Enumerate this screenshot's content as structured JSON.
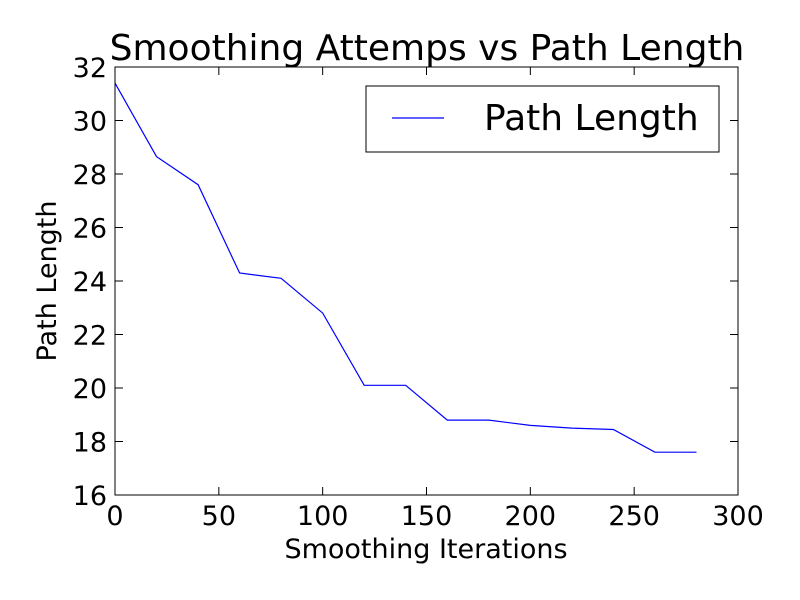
{
  "chart_data": {
    "type": "line",
    "title": "Smoothing Attemps vs Path Length",
    "xlabel": "Smoothing Iterations",
    "ylabel": "Path Length",
    "xlim": [
      0,
      300
    ],
    "ylim": [
      16,
      32
    ],
    "xticks": [
      0,
      50,
      100,
      150,
      200,
      250,
      300
    ],
    "yticks": [
      16,
      18,
      20,
      22,
      24,
      26,
      28,
      30,
      32
    ],
    "grid": false,
    "legend_position": "top-right",
    "series": [
      {
        "name": "Path Length",
        "color": "#0000ff",
        "x": [
          0,
          20,
          40,
          60,
          80,
          100,
          120,
          140,
          160,
          180,
          200,
          220,
          240,
          260,
          280
        ],
        "y": [
          31.4,
          28.65,
          27.6,
          24.3,
          24.1,
          22.8,
          20.1,
          20.1,
          18.8,
          18.8,
          18.6,
          18.5,
          18.45,
          17.6,
          17.6
        ]
      }
    ]
  }
}
